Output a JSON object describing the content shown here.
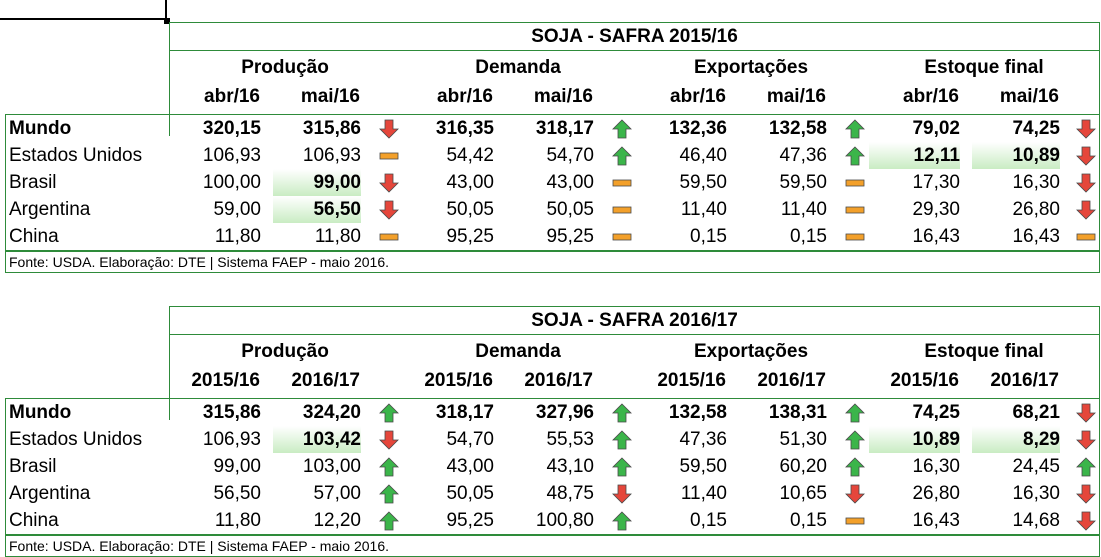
{
  "colors": {
    "border": "#2e8b3a",
    "up": "#3bb54a",
    "down": "#e5463b",
    "flat": "#f3a02a",
    "highlight": "#c9ecc3"
  },
  "tables": [
    {
      "title": "SOJA - SAFRA 2015/16",
      "groups": [
        "Produção",
        "Demanda",
        "Exportações",
        "Estoque final"
      ],
      "subheaders": [
        "abr/16",
        "mai/16"
      ],
      "source": "Fonte: USDA. Elaboração: DTE | Sistema  FAEP - maio 2016.",
      "rows": [
        {
          "label": "Mundo",
          "bold": true,
          "prod": [
            "320,15",
            "315,86"
          ],
          "prod_ind": "down-arrow-icon",
          "dem": [
            "316,35",
            "318,17"
          ],
          "dem_ind": "up-arrow-icon",
          "exp": [
            "132,36",
            "132,58"
          ],
          "exp_ind": "up-arrow-icon",
          "est": [
            "79,02",
            "74,25"
          ],
          "est_ind": "down-arrow-icon"
        },
        {
          "label": "Estados Unidos",
          "bold": false,
          "prod": [
            "106,93",
            "106,93"
          ],
          "prod_ind": "flat-dash-icon",
          "dem": [
            "54,42",
            "54,70"
          ],
          "dem_ind": "up-arrow-icon",
          "exp": [
            "46,40",
            "47,36"
          ],
          "exp_ind": "up-arrow-icon",
          "est": [
            "12,11",
            "10,89"
          ],
          "est_ind": "down-arrow-icon"
        },
        {
          "label": "Brasil",
          "bold": false,
          "prod": [
            "100,00",
            "99,00"
          ],
          "prod_ind": "down-arrow-icon",
          "dem": [
            "43,00",
            "43,00"
          ],
          "dem_ind": "flat-dash-icon",
          "exp": [
            "59,50",
            "59,50"
          ],
          "exp_ind": "flat-dash-icon",
          "est": [
            "17,30",
            "16,30"
          ],
          "est_ind": "down-arrow-icon"
        },
        {
          "label": "Argentina",
          "bold": false,
          "prod": [
            "59,00",
            "56,50"
          ],
          "prod_ind": "down-arrow-icon",
          "dem": [
            "50,05",
            "50,05"
          ],
          "dem_ind": "flat-dash-icon",
          "exp": [
            "11,40",
            "11,40"
          ],
          "exp_ind": "flat-dash-icon",
          "est": [
            "29,30",
            "26,80"
          ],
          "est_ind": "down-arrow-icon"
        },
        {
          "label": "China",
          "bold": false,
          "prod": [
            "11,80",
            "11,80"
          ],
          "prod_ind": "flat-dash-icon",
          "dem": [
            "95,25",
            "95,25"
          ],
          "dem_ind": "flat-dash-icon",
          "exp": [
            "0,15",
            "0,15"
          ],
          "exp_ind": "flat-dash-icon",
          "est": [
            "16,43",
            "16,43"
          ],
          "est_ind": "flat-dash-icon"
        }
      ]
    },
    {
      "title": "SOJA - SAFRA 2016/17",
      "groups": [
        "Produção",
        "Demanda",
        "Exportações",
        "Estoque final"
      ],
      "subheaders": [
        "2015/16",
        "2016/17"
      ],
      "source": "Fonte: USDA. Elaboração: DTE | Sistema  FAEP - maio 2016.",
      "rows": [
        {
          "label": "Mundo",
          "bold": true,
          "prod": [
            "315,86",
            "324,20"
          ],
          "prod_ind": "up-arrow-icon",
          "dem": [
            "318,17",
            "327,96"
          ],
          "dem_ind": "up-arrow-icon",
          "exp": [
            "132,58",
            "138,31"
          ],
          "exp_ind": "up-arrow-icon",
          "est": [
            "74,25",
            "68,21"
          ],
          "est_ind": "down-arrow-icon"
        },
        {
          "label": "Estados Unidos",
          "bold": false,
          "prod": [
            "106,93",
            "103,42"
          ],
          "prod_ind": "down-arrow-icon",
          "dem": [
            "54,70",
            "55,53"
          ],
          "dem_ind": "up-arrow-icon",
          "exp": [
            "47,36",
            "51,30"
          ],
          "exp_ind": "up-arrow-icon",
          "est": [
            "10,89",
            "8,29"
          ],
          "est_ind": "down-arrow-icon"
        },
        {
          "label": "Brasil",
          "bold": false,
          "prod": [
            "99,00",
            "103,00"
          ],
          "prod_ind": "up-arrow-icon",
          "dem": [
            "43,00",
            "43,10"
          ],
          "dem_ind": "up-arrow-icon",
          "exp": [
            "59,50",
            "60,20"
          ],
          "exp_ind": "up-arrow-icon",
          "est": [
            "16,30",
            "24,45"
          ],
          "est_ind": "up-arrow-icon"
        },
        {
          "label": "Argentina",
          "bold": false,
          "prod": [
            "56,50",
            "57,00"
          ],
          "prod_ind": "up-arrow-icon",
          "dem": [
            "50,05",
            "48,75"
          ],
          "dem_ind": "down-arrow-icon",
          "exp": [
            "11,40",
            "10,65"
          ],
          "exp_ind": "down-arrow-icon",
          "est": [
            "26,80",
            "16,30"
          ],
          "est_ind": "down-arrow-icon"
        },
        {
          "label": "China",
          "bold": false,
          "prod": [
            "11,80",
            "12,20"
          ],
          "prod_ind": "up-arrow-icon",
          "dem": [
            "95,25",
            "100,80"
          ],
          "dem_ind": "up-arrow-icon",
          "exp": [
            "0,15",
            "0,15"
          ],
          "exp_ind": "flat-dash-icon",
          "est": [
            "16,43",
            "14,68"
          ],
          "est_ind": "down-arrow-icon"
        }
      ]
    }
  ]
}
